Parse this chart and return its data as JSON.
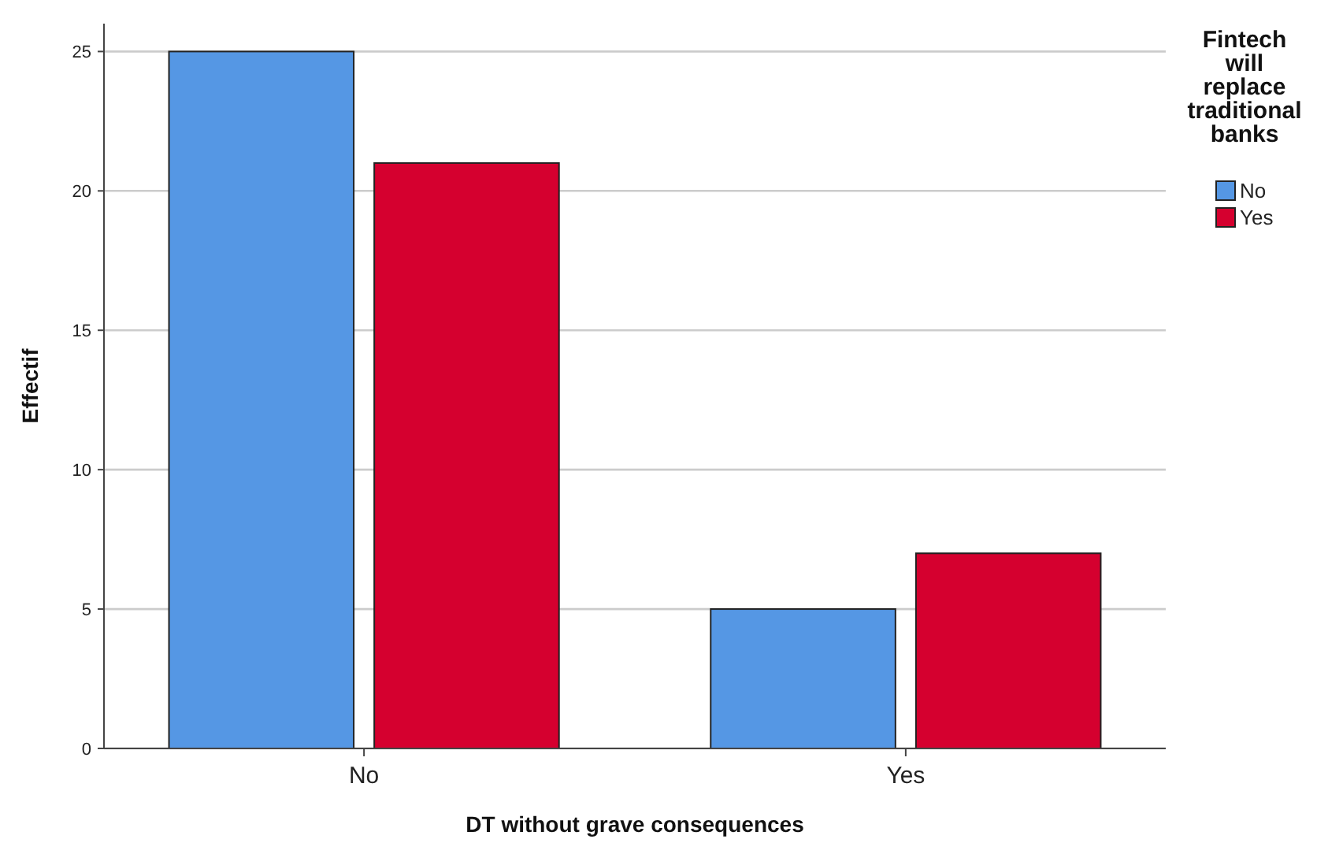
{
  "chart_data": {
    "type": "bar",
    "xlabel": "DT without grave consequences",
    "ylabel": "Effectif",
    "legend_title": "Fintech will replace traditional banks",
    "categories": [
      "No",
      "Yes"
    ],
    "series": [
      {
        "name": "No",
        "color": "#5597e4",
        "values": [
          25,
          5
        ]
      },
      {
        "name": "Yes",
        "color": "#d5002f",
        "values": [
          21,
          7
        ]
      }
    ],
    "ylim": [
      0,
      26
    ],
    "yticks": [
      0,
      5,
      10,
      15,
      20,
      25
    ],
    "grid": "y",
    "legend": "right"
  }
}
